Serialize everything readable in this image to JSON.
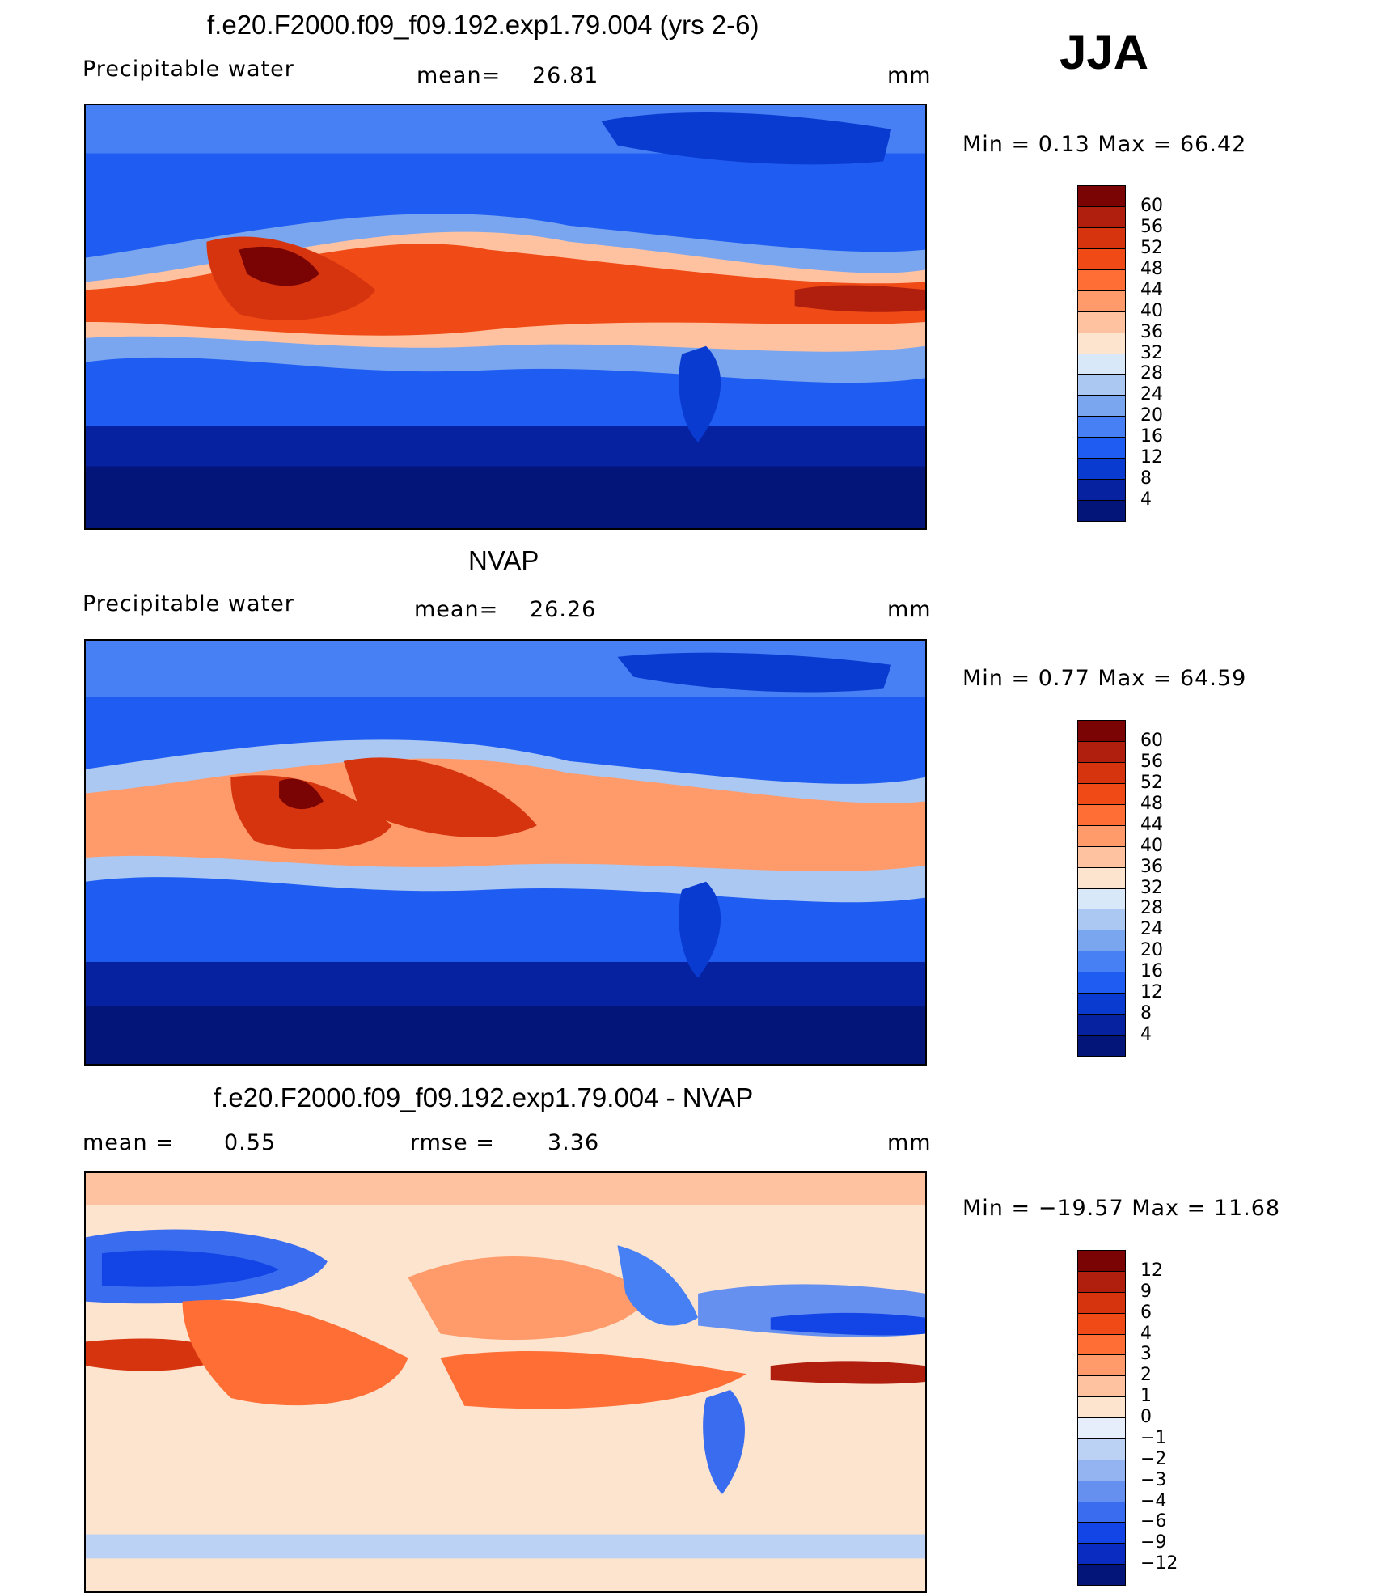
{
  "season": "JJA",
  "panels": [
    {
      "title": "f.e20.F2000.f09_f09.192.exp1.79.004 (yrs 2-6)",
      "left_label": "Precipitable  water",
      "center_label": "mean=",
      "center_value": "26.81",
      "units": "mm",
      "minmax_text": "Min  =     0.13  Max  =     66.42",
      "levels": [
        "60",
        "56",
        "52",
        "48",
        "44",
        "40",
        "36",
        "32",
        "28",
        "24",
        "20",
        "16",
        "12",
        "8",
        "4"
      ],
      "colors": [
        "#7a0403",
        "#b01e0e",
        "#d6340f",
        "#f04b16",
        "#ff6e35",
        "#ff9a6a",
        "#ffc2a0",
        "#fde4cf",
        "#d9e8f8",
        "#aac8f2",
        "#7aa6ef",
        "#4680f4",
        "#1f5cf2",
        "#0a3bd0",
        "#0622a0",
        "#04157a"
      ]
    },
    {
      "title": "NVAP",
      "left_label": "Precipitable  water",
      "center_label": "mean=",
      "center_value": "26.26",
      "units": "mm",
      "minmax_text": "Min  =     0.77  Max  =     64.59",
      "levels": [
        "60",
        "56",
        "52",
        "48",
        "44",
        "40",
        "36",
        "32",
        "28",
        "24",
        "20",
        "16",
        "12",
        "8",
        "4"
      ],
      "colors": [
        "#7a0403",
        "#b01e0e",
        "#d6340f",
        "#f04b16",
        "#ff6e35",
        "#ff9a6a",
        "#ffc2a0",
        "#fde4cf",
        "#d9e8f8",
        "#aac8f2",
        "#7aa6ef",
        "#4680f4",
        "#1f5cf2",
        "#0a3bd0",
        "#0622a0",
        "#04157a"
      ]
    },
    {
      "title": "f.e20.F2000.f09_f09.192.exp1.79.004 - NVAP",
      "left_label": "mean  =",
      "left_value": "0.55",
      "center_label": "rmse  =",
      "center_value": "3.36",
      "units": "mm",
      "minmax_text": "Min  = −19.57  Max  =     11.68",
      "levels": [
        "12",
        "9",
        "6",
        "4",
        "3",
        "2",
        "1",
        "0",
        "−1",
        "−2",
        "−3",
        "−4",
        "−6",
        "−9",
        "−12"
      ],
      "colors": [
        "#7a0403",
        "#b01e0e",
        "#d6340f",
        "#f04b16",
        "#ff6e35",
        "#ff9a6a",
        "#ffc2a0",
        "#fde4cf",
        "#e7eefb",
        "#bcd2f5",
        "#93b4f1",
        "#6690f0",
        "#3a6cef",
        "#1345e6",
        "#0a2cc0",
        "#04157a"
      ]
    }
  ]
}
